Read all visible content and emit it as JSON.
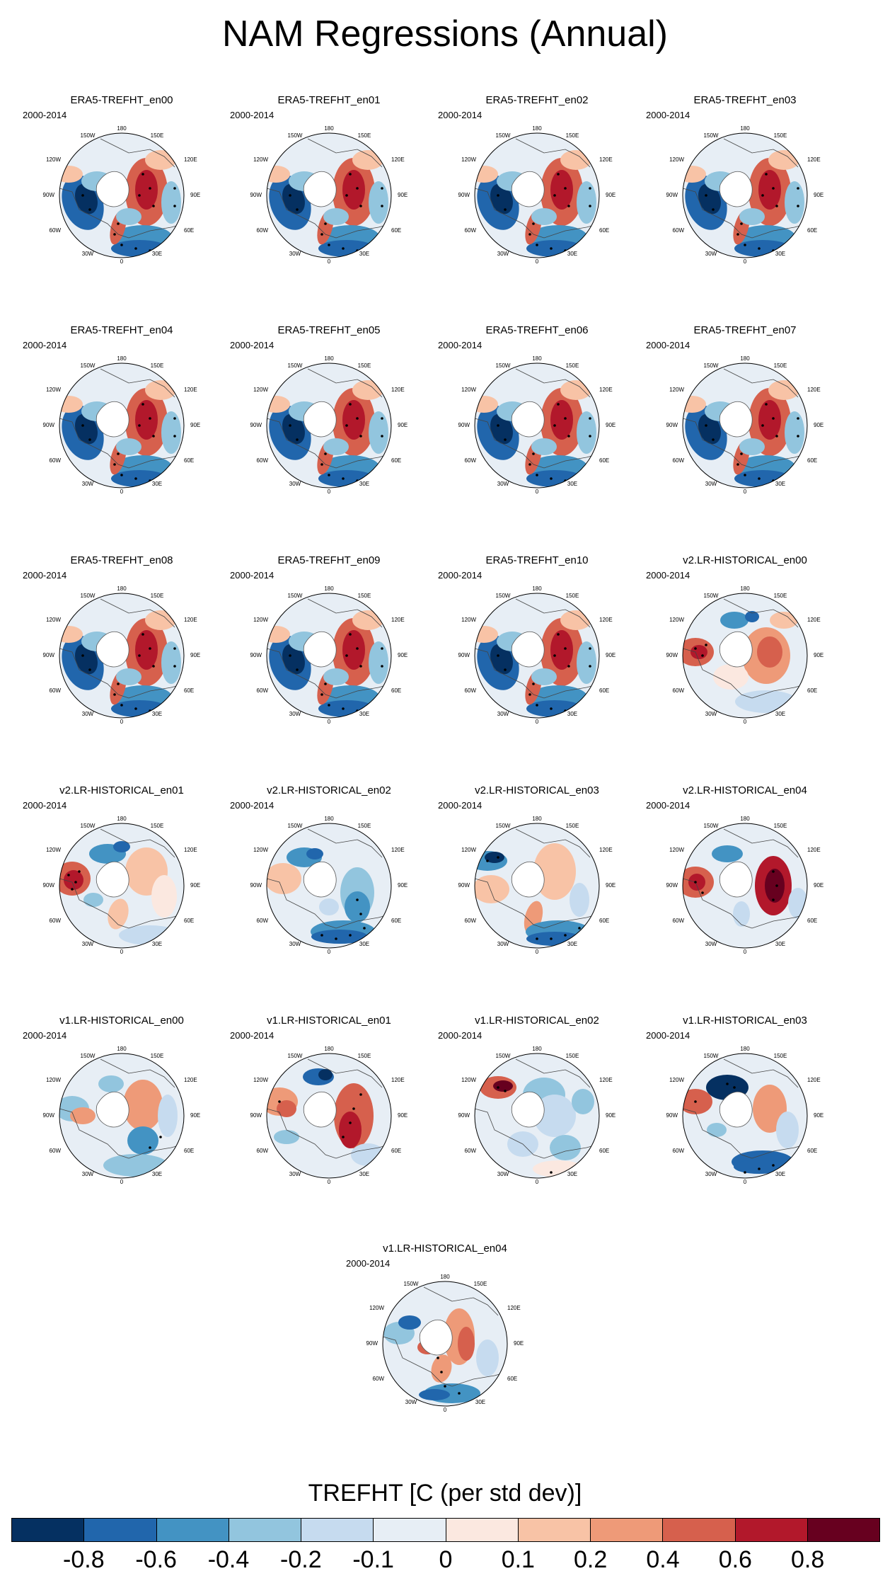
{
  "figure": {
    "title": "NAM Regressions (Annual)",
    "colorbar": {
      "title": "TREFHT [C (per std dev)]",
      "colors": [
        "#053061",
        "#2166ac",
        "#4393c3",
        "#92c5de",
        "#c6dbef",
        "#e7eef5",
        "#fbe8e0",
        "#f8c3a6",
        "#ee9a78",
        "#d6604d",
        "#b2182b",
        "#67001f"
      ],
      "ticks": [
        "-0.8",
        "-0.6",
        "-0.4",
        "-0.2",
        "-0.1",
        "0",
        "0.1",
        "0.2",
        "0.4",
        "0.6",
        "0.8"
      ]
    },
    "map_labels": {
      "top": "180",
      "upper_left": "150W",
      "upper_right": "150E",
      "left_upper": "120W",
      "right_upper": "120E",
      "left": "90W",
      "right": "90E",
      "left_lower": "60W",
      "right_lower": "60E",
      "lower_left": "30W",
      "lower_right": "30E",
      "bottom": "0"
    },
    "panels": [
      {
        "title": "ERA5-TREFHT_en00",
        "period": "2000-2014",
        "pattern": "era5"
      },
      {
        "title": "ERA5-TREFHT_en01",
        "period": "2000-2014",
        "pattern": "era5"
      },
      {
        "title": "ERA5-TREFHT_en02",
        "period": "2000-2014",
        "pattern": "era5"
      },
      {
        "title": "ERA5-TREFHT_en03",
        "period": "2000-2014",
        "pattern": "era5"
      },
      {
        "title": "ERA5-TREFHT_en04",
        "period": "2000-2014",
        "pattern": "era5"
      },
      {
        "title": "ERA5-TREFHT_en05",
        "period": "2000-2014",
        "pattern": "era5"
      },
      {
        "title": "ERA5-TREFHT_en06",
        "period": "2000-2014",
        "pattern": "era5"
      },
      {
        "title": "ERA5-TREFHT_en07",
        "period": "2000-2014",
        "pattern": "era5"
      },
      {
        "title": "ERA5-TREFHT_en08",
        "period": "2000-2014",
        "pattern": "era5"
      },
      {
        "title": "ERA5-TREFHT_en09",
        "period": "2000-2014",
        "pattern": "era5"
      },
      {
        "title": "ERA5-TREFHT_en10",
        "period": "2000-2014",
        "pattern": "era5"
      },
      {
        "title": "v2.LR-HISTORICAL_en00",
        "period": "2000-2014",
        "pattern": "v2en00"
      },
      {
        "title": "v2.LR-HISTORICAL_en01",
        "period": "2000-2014",
        "pattern": "v2en01"
      },
      {
        "title": "v2.LR-HISTORICAL_en02",
        "period": "2000-2014",
        "pattern": "v2en02"
      },
      {
        "title": "v2.LR-HISTORICAL_en03",
        "period": "2000-2014",
        "pattern": "v2en03"
      },
      {
        "title": "v2.LR-HISTORICAL_en04",
        "period": "2000-2014",
        "pattern": "v2en04"
      },
      {
        "title": "v1.LR-HISTORICAL_en00",
        "period": "2000-2014",
        "pattern": "v1en00"
      },
      {
        "title": "v1.LR-HISTORICAL_en01",
        "period": "2000-2014",
        "pattern": "v1en01"
      },
      {
        "title": "v1.LR-HISTORICAL_en02",
        "period": "2000-2014",
        "pattern": "v1en02"
      },
      {
        "title": "v1.LR-HISTORICAL_en03",
        "period": "2000-2014",
        "pattern": "v1en03"
      },
      {
        "title": "v1.LR-HISTORICAL_en04",
        "period": "2000-2014",
        "pattern": "v1en04"
      }
    ]
  }
}
